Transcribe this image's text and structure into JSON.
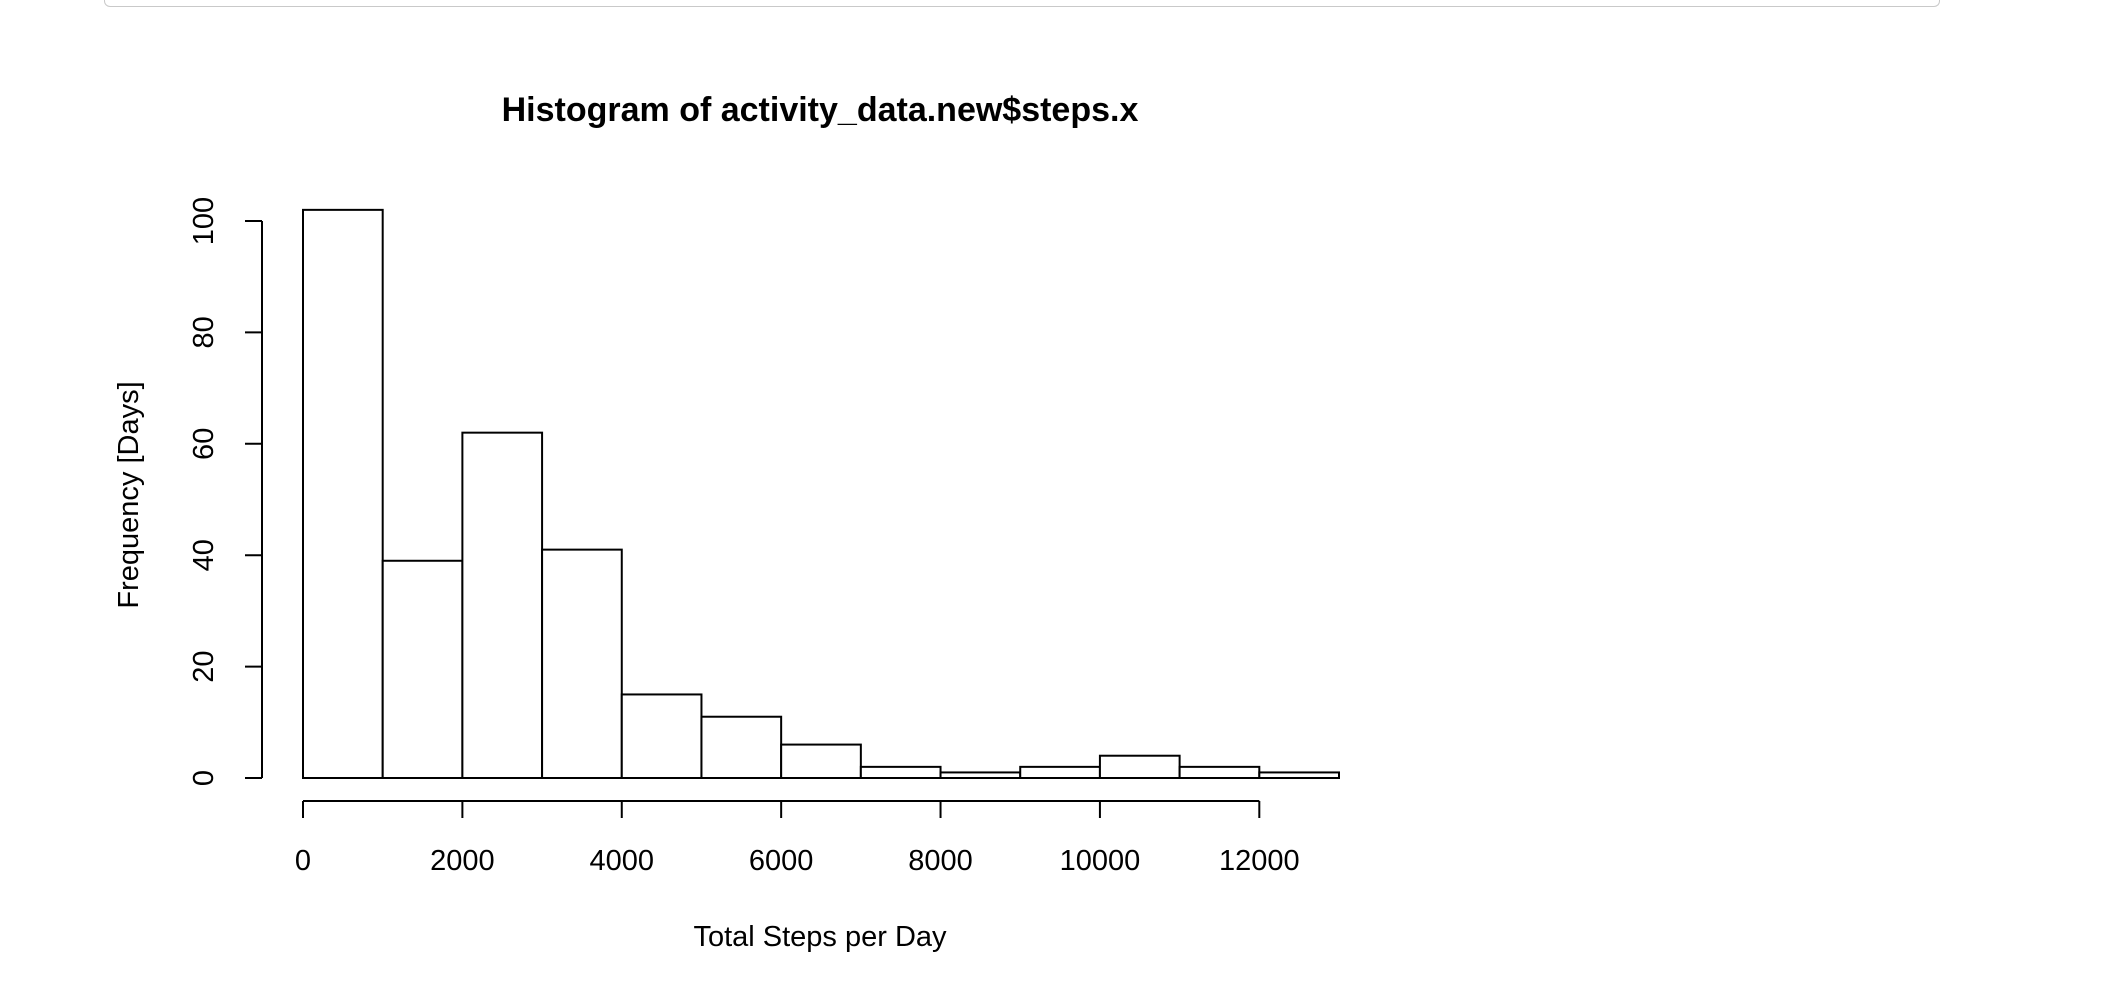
{
  "chart_data": {
    "type": "bar",
    "title": "Histogram of activity_data.new$steps.x",
    "xlabel": "Total Steps per Day",
    "ylabel": "Frequency [Days]",
    "bin_edges": [
      0,
      1000,
      2000,
      3000,
      4000,
      5000,
      6000,
      7000,
      8000,
      9000,
      10000,
      11000,
      12000,
      13000
    ],
    "values": [
      102,
      39,
      62,
      41,
      15,
      11,
      6,
      2,
      1,
      2,
      4,
      2,
      1
    ],
    "xlim": [
      0,
      13000
    ],
    "ylim": [
      0,
      100
    ],
    "x_ticks": [
      0,
      2000,
      4000,
      6000,
      8000,
      10000,
      12000
    ],
    "x_tick_labels": [
      "0",
      "2000",
      "4000",
      "6000",
      "8000",
      "10000",
      "12000"
    ],
    "y_ticks": [
      0,
      20,
      40,
      60,
      80,
      100
    ],
    "y_tick_labels": [
      "0",
      "20",
      "40",
      "60",
      "80",
      "100"
    ],
    "grid": false,
    "bar_fill": "#ffffff",
    "bar_stroke": "#000000"
  }
}
